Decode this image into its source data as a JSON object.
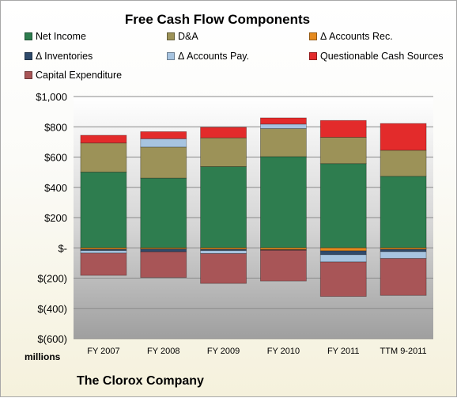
{
  "chart_data": {
    "type": "bar",
    "stacked": true,
    "title": "Free Cash Flow Components",
    "xlabel": "",
    "ylabel": "",
    "units_label": "millions",
    "company": "The Clorox Company",
    "categories": [
      "FY 2007",
      "FY 2008",
      "FY 2009",
      "FY 2010",
      "FY 2011",
      "TTM 9-2011"
    ],
    "ylim": [
      -600,
      1000
    ],
    "yticks": [
      1000,
      800,
      600,
      400,
      200,
      0,
      -200,
      -400,
      -600
    ],
    "ytick_labels": [
      "$1,000",
      "$800",
      "$600",
      "$400",
      "$200",
      "$-",
      "$(200)",
      "$(400)",
      "$(600)"
    ],
    "grid": true,
    "legend": "top",
    "series": [
      {
        "name": "Net Income",
        "color": "#2e7d4f",
        "values": [
          501,
          461,
          537,
          603,
          557,
          473
        ]
      },
      {
        "name": "D&A",
        "color": "#9c9258",
        "values": [
          192,
          205,
          190,
          185,
          174,
          172
        ]
      },
      {
        "name": "Δ Accounts Rec.",
        "color": "#e58a1f",
        "values": [
          -10,
          -8,
          -10,
          -12,
          -20,
          -10
        ]
      },
      {
        "name": "Δ Inventories",
        "color": "#2f4a6b",
        "values": [
          -8,
          -18,
          -8,
          -4,
          -25,
          -15
        ]
      },
      {
        "name": "Δ Accounts Pay.",
        "color": "#a7c4e0",
        "values": [
          -17,
          55,
          -20,
          30,
          -48,
          -45
        ]
      },
      {
        "name": "Questionable Cash Sources",
        "color": "#e32b2b",
        "values": [
          51,
          47,
          70,
          41,
          111,
          177
        ]
      },
      {
        "name": "Capital Expenditure",
        "color": "#a85557",
        "values": [
          -147,
          -170,
          -197,
          -203,
          -228,
          -244
        ]
      }
    ]
  }
}
